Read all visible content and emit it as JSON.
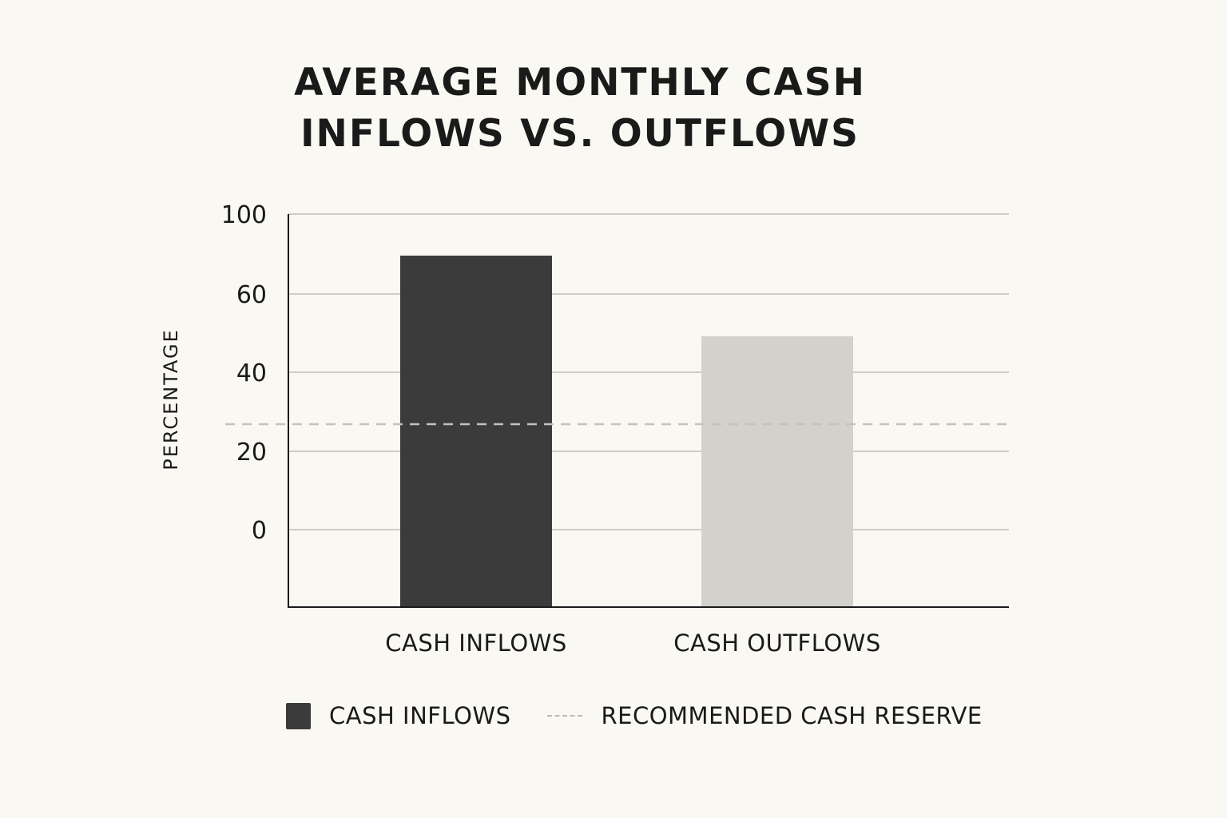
{
  "chart_data": {
    "type": "bar",
    "title_lines": [
      "AVERAGE MONTHLY CASH",
      "INFLOWS VS. OUTFLOWS"
    ],
    "ylabel": "PERCENTAGE",
    "xlabel": "",
    "yticks": [
      0,
      20,
      40,
      60,
      100
    ],
    "categories": [
      "CASH INFLOWS",
      "CASH OUTFLOWS"
    ],
    "values": [
      71,
      49
    ],
    "bar_colors": [
      "#3b3b3b",
      "#d3d1cc"
    ],
    "reference_line": {
      "name": "RECOMMENDED CASH RESERVE",
      "value": 27,
      "style": "dashed",
      "color": "#c5c2bc"
    },
    "legend": [
      "CASH INFLOWS",
      "RECOMMENDED CASH RESERVE"
    ],
    "legend_position": "bottom",
    "grid": true
  }
}
